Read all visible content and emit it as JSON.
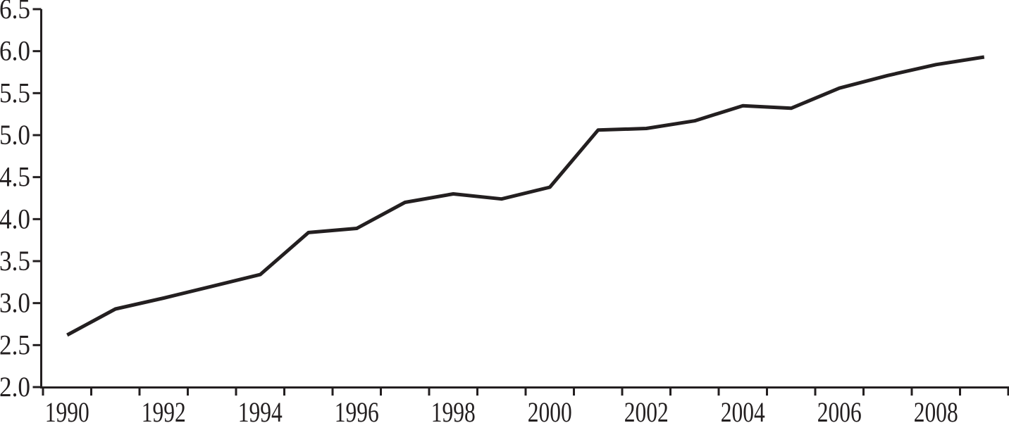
{
  "chart_data": {
    "type": "line",
    "title": "",
    "xlabel": "",
    "ylabel": "",
    "x": [
      1990,
      1991,
      1992,
      1993,
      1994,
      1995,
      1996,
      1997,
      1998,
      1999,
      2000,
      2001,
      2002,
      2003,
      2004,
      2005,
      2006,
      2007,
      2008,
      2009
    ],
    "values": [
      2.62,
      2.93,
      3.06,
      3.2,
      3.34,
      3.84,
      3.89,
      4.2,
      4.3,
      4.24,
      4.38,
      5.06,
      5.08,
      5.17,
      5.35,
      5.32,
      5.56,
      5.71,
      5.84,
      5.93
    ],
    "ylim": [
      2.0,
      6.5
    ],
    "y_tick_step": 0.5,
    "y_tick_labels": [
      "2.0",
      "2.5",
      "3.0",
      "3.5",
      "4.0",
      "4.5",
      "5.0",
      "5.5",
      "6.0",
      "6.5"
    ],
    "x_tick_labels": [
      "1990",
      "1992",
      "1994",
      "1996",
      "1998",
      "2000",
      "2002",
      "2004",
      "2006",
      "2008"
    ],
    "grid": false,
    "legend": null,
    "line_color": "#231f20",
    "axis_color": "#231f20",
    "text_color": "#231f20",
    "background": "#ffffff"
  }
}
